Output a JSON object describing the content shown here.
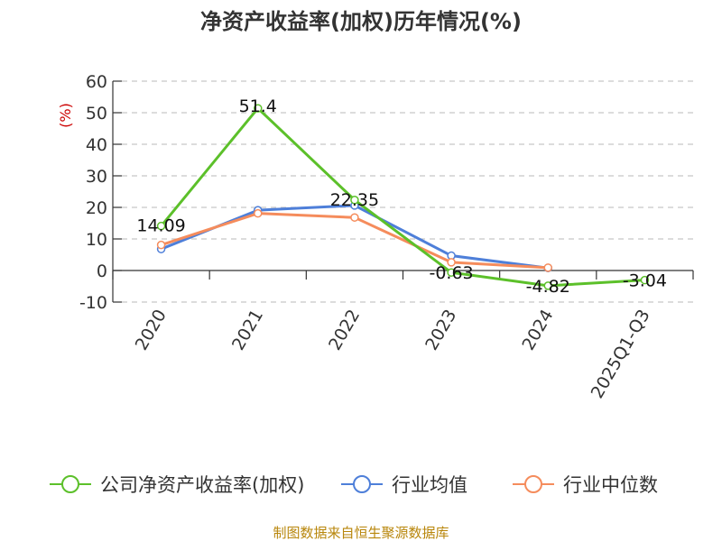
{
  "chart_data": {
    "type": "line",
    "title": "净资产收益率(加权)历年情况(%)",
    "ylabel": "(%)",
    "categories": [
      "2020",
      "2021",
      "2022",
      "2023",
      "2024",
      "2025Q1-Q3"
    ],
    "ylim": [
      -10,
      60
    ],
    "yticks": [
      60,
      50,
      40,
      30,
      20,
      10,
      0,
      -10
    ],
    "grid": true,
    "legend_position": "bottom",
    "series": [
      {
        "name": "公司净资产收益率(加权)",
        "color": "#5cc02a",
        "values": [
          14.09,
          51.4,
          22.35,
          -0.63,
          -4.82,
          -3.04
        ],
        "labels": [
          "14.09",
          "51.4",
          "22.35",
          "-0.63",
          "-4.82",
          "-3.04"
        ]
      },
      {
        "name": "行业均值",
        "color": "#4e7fd9",
        "values": [
          6.8,
          19.1,
          20.6,
          4.7,
          0.8,
          null
        ]
      },
      {
        "name": "行业中位数",
        "color": "#f58c5c",
        "values": [
          8.1,
          18.1,
          16.8,
          2.6,
          0.9,
          null
        ]
      }
    ]
  },
  "source": "制图数据来自恒生聚源数据库"
}
